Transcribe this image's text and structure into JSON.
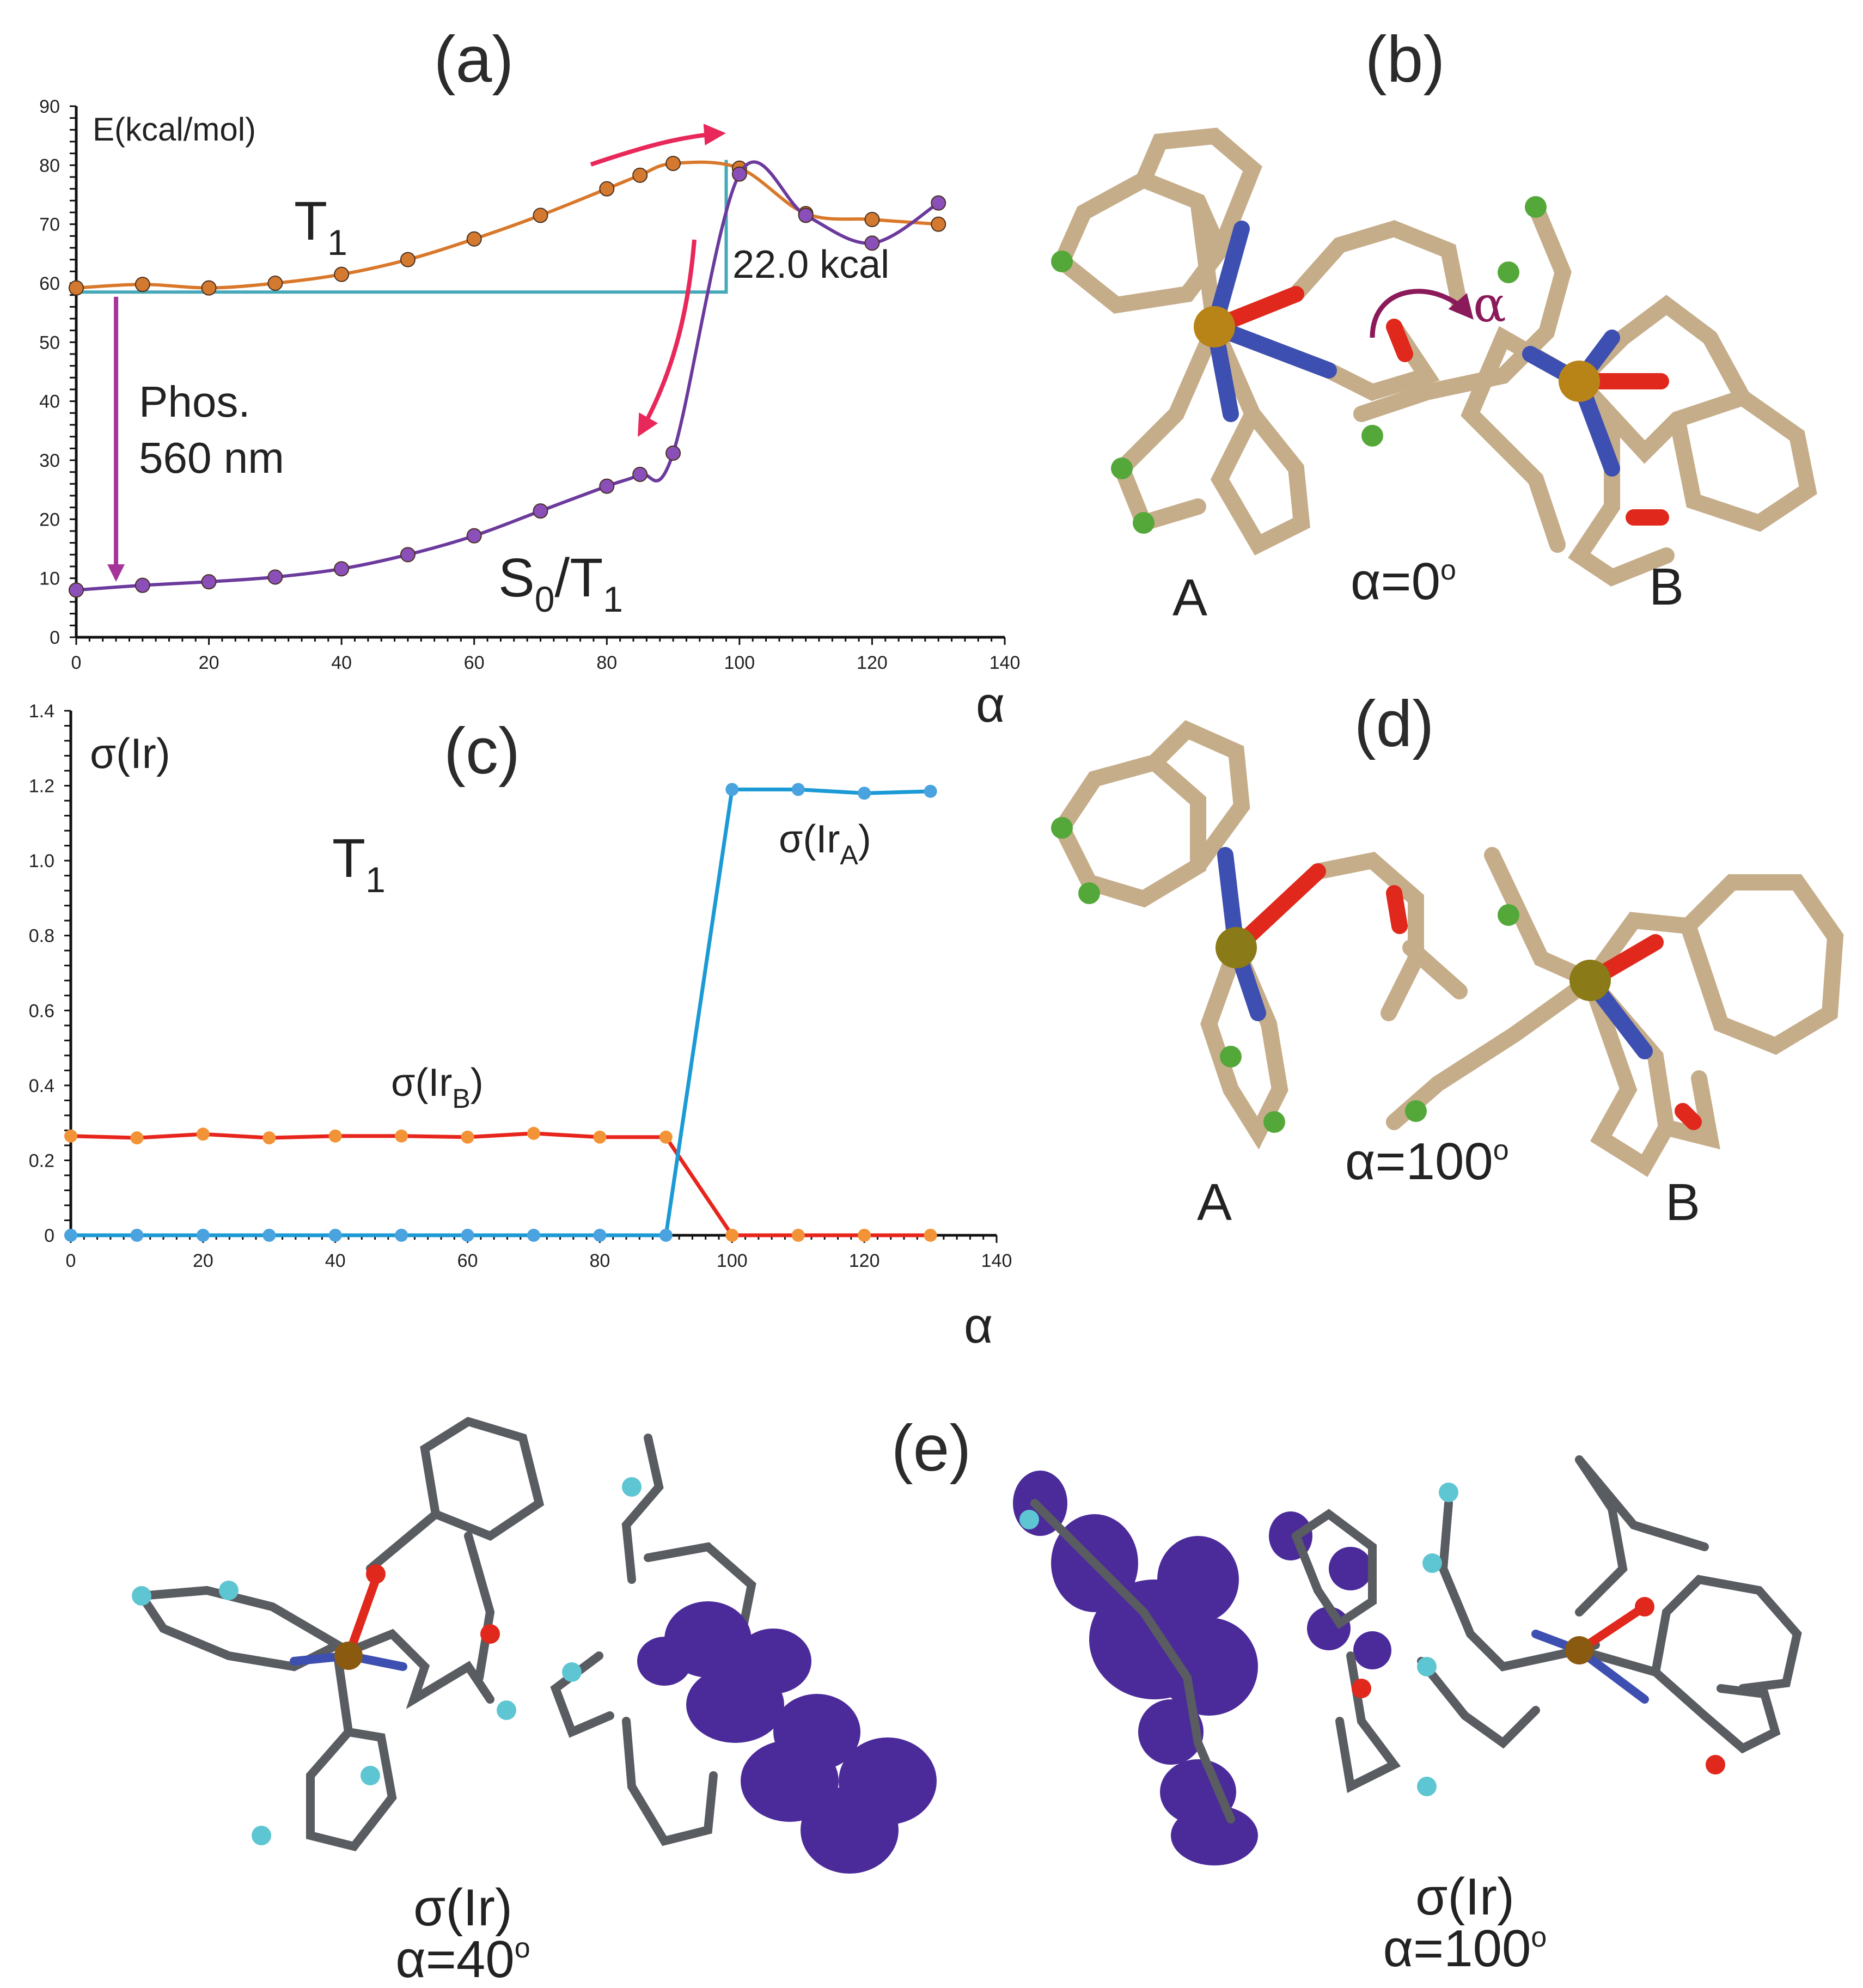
{
  "panels": {
    "a": "(a)",
    "b": "(b)",
    "c": "(c)",
    "d": "(d)",
    "e": "(e)"
  },
  "colors": {
    "t1": "#d9782a",
    "t1_fill": "#d47a30",
    "s0t1": "#6b3a9c",
    "s0t1_fill": "#8a4fb8",
    "barrier": "#47a8b8",
    "arrow_red": "#e8285a",
    "phos_arrow": "#a6359a",
    "ir_a": "#1b9ad6",
    "ir_a_fill": "#4aa3de",
    "ir_b": "#e8251c",
    "ir_b_fill": "#f29338",
    "carbon": "#c6ad8a",
    "nitrogen": "#3d4fb0",
    "oxygen": "#e0281c",
    "fluorine": "#54a83a",
    "iridium": "#b88418",
    "spin_density": "#4b2b9a",
    "e_carbon": "#595c60",
    "e_fluorine": "#5ec6d2",
    "e_iridium": "#8a5a10"
  },
  "chart_data": [
    {
      "type": "line",
      "panel": "a",
      "ylabel": "E(kcal/mol)",
      "xlabel": "α",
      "xlim": [
        0,
        140
      ],
      "ylim": [
        0,
        90
      ],
      "xticks": [
        0,
        20,
        40,
        60,
        80,
        100,
        120,
        140
      ],
      "yticks": [
        0,
        10,
        20,
        30,
        40,
        50,
        60,
        70,
        80,
        90
      ],
      "series": [
        {
          "name": "T1",
          "name_main": "T",
          "name_sub": "1",
          "x": [
            0,
            10,
            20,
            30,
            40,
            50,
            60,
            70,
            80,
            85,
            90,
            100,
            110,
            120,
            130
          ],
          "y": [
            59.2,
            59.8,
            59.2,
            60.0,
            61.5,
            64.0,
            67.5,
            71.5,
            76.0,
            78.3,
            80.3,
            79.5,
            71.8,
            70.8,
            70.0
          ]
        },
        {
          "name": "S0/T1",
          "name_parts": [
            "S",
            "0",
            "/T",
            "1"
          ],
          "x": [
            0,
            10,
            20,
            30,
            40,
            50,
            60,
            70,
            80,
            85,
            90,
            100,
            110,
            120,
            130
          ],
          "y": [
            8.0,
            8.8,
            9.4,
            10.2,
            11.6,
            14.0,
            17.2,
            21.4,
            25.6,
            27.6,
            31.2,
            78.5,
            71.5,
            66.8,
            73.6
          ]
        }
      ],
      "annotations": {
        "barrier": "22.0 kcal",
        "barrier_level": 58.5,
        "barrier_x": 98,
        "phos_line1": "Phos.",
        "phos_line2": "560 nm",
        "phos_x": 6
      }
    },
    {
      "type": "line",
      "panel": "c",
      "ylabel": "σ(Ir)",
      "xlabel": "α",
      "title": "T1",
      "title_main": "T",
      "title_sub": "1",
      "xlim": [
        0,
        140
      ],
      "ylim": [
        0,
        1.4
      ],
      "xticks": [
        0,
        20,
        40,
        60,
        80,
        100,
        120,
        140
      ],
      "yticks": [
        0,
        0.2,
        0.4,
        0.6,
        0.8,
        1.0,
        1.2,
        1.4
      ],
      "ytick_labels": [
        "0",
        "0.2",
        "0.4",
        "0.6",
        "0.8",
        "1.0",
        "1.2",
        "1.4"
      ],
      "series": [
        {
          "name": "σ(IrA)",
          "name_main": "σ(Ir",
          "name_sub": "A",
          "name_end": ")",
          "x": [
            0,
            10,
            20,
            30,
            40,
            50,
            60,
            70,
            80,
            90,
            100,
            110,
            120,
            130
          ],
          "y": [
            0,
            0,
            0,
            0,
            0,
            0,
            0,
            0,
            0,
            0,
            1.19,
            1.19,
            1.18,
            1.185
          ]
        },
        {
          "name": "σ(IrB)",
          "name_main": "σ(Ir",
          "name_sub": "B",
          "name_end": ")",
          "x": [
            0,
            10,
            20,
            30,
            40,
            50,
            60,
            70,
            80,
            90,
            100,
            110,
            120,
            130
          ],
          "y": [
            0.265,
            0.26,
            0.27,
            0.26,
            0.265,
            0.265,
            0.262,
            0.272,
            0.262,
            0.262,
            0,
            0,
            0,
            0
          ]
        }
      ]
    }
  ],
  "molecules": {
    "b": {
      "left": "A",
      "right": "B",
      "angle_main": "α=0",
      "angle_sup": "o",
      "rot_symbol": "α"
    },
    "d": {
      "left": "A",
      "right": "B",
      "angle_main": "α=100",
      "angle_sup": "o"
    },
    "e": {
      "left_sigma": "σ(Ir)",
      "left_angle_main": "α=40",
      "left_angle_sup": "o",
      "right_sigma": "σ(Ir)",
      "right_angle_main": "α=100",
      "right_angle_sup": "o"
    }
  }
}
